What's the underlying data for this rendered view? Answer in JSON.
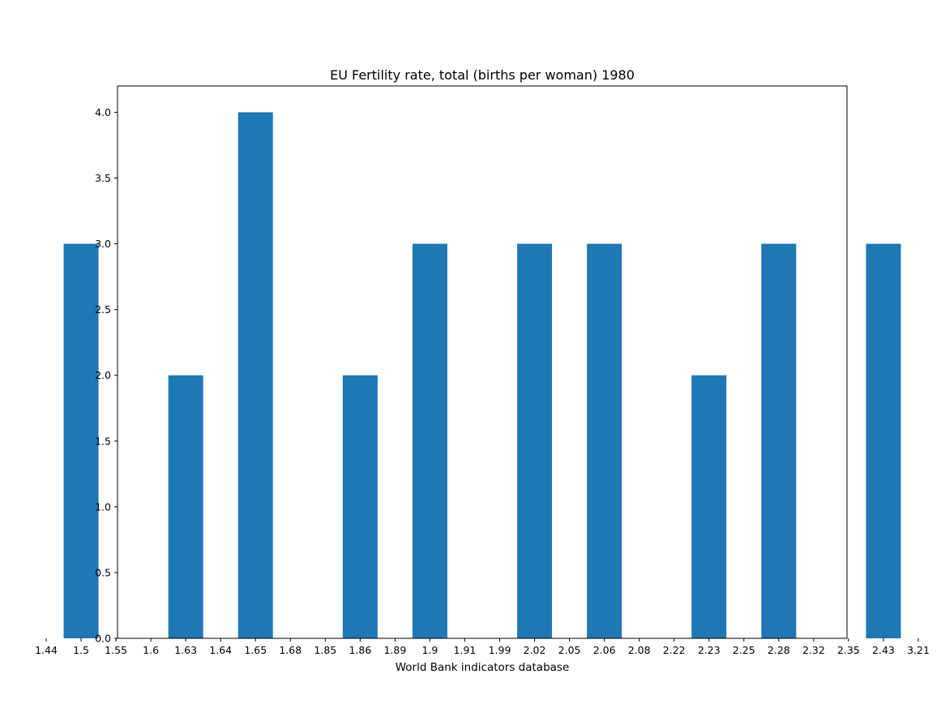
{
  "chart_data": {
    "type": "bar",
    "title": "EU Fertility rate, total (births per woman) 1980",
    "xlabel": "World Bank indicators database",
    "ylabel": "",
    "categories": [
      "1.44",
      "1.5",
      "1.55",
      "1.6",
      "1.63",
      "1.64",
      "1.65",
      "1.68",
      "1.85",
      "1.86",
      "1.89",
      "1.9",
      "1.91",
      "1.99",
      "2.02",
      "2.05",
      "2.06",
      "2.08",
      "2.22",
      "2.23",
      "2.25",
      "2.28",
      "2.32",
      "2.35",
      "2.43",
      "3.21"
    ],
    "bars": [
      {
        "category": "1.5",
        "value": 3
      },
      {
        "category": "1.63",
        "value": 2
      },
      {
        "category": "1.65",
        "value": 4
      },
      {
        "category": "1.86",
        "value": 2
      },
      {
        "category": "1.9",
        "value": 3
      },
      {
        "category": "2.02",
        "value": 3
      },
      {
        "category": "2.06",
        "value": 3
      },
      {
        "category": "2.23",
        "value": 2
      },
      {
        "category": "2.28",
        "value": 3
      },
      {
        "category": "2.43",
        "value": 3
      }
    ],
    "yticks": [
      "0.0",
      "0.5",
      "1.0",
      "1.5",
      "2.0",
      "2.5",
      "3.0",
      "3.5",
      "4.0"
    ],
    "ylim": [
      0,
      4.2
    ],
    "grid": false,
    "bar_color": "#1f77b4"
  }
}
